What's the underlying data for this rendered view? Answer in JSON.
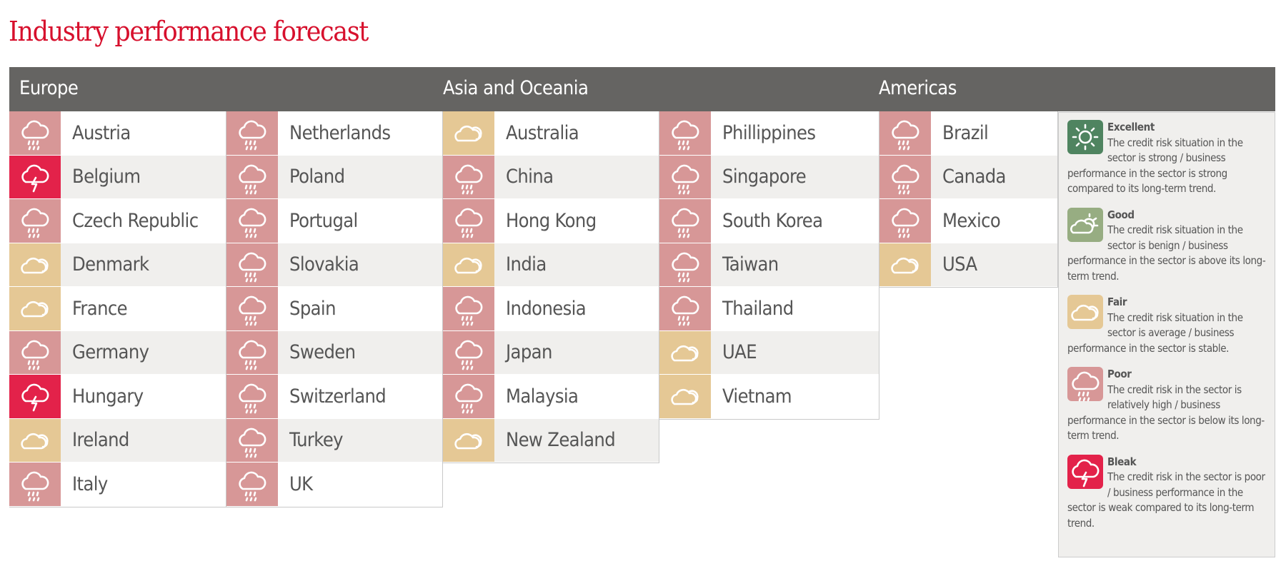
{
  "title": "Industry performance forecast",
  "colors": {
    "excellent": "#4f8460",
    "good": "#97ad82",
    "fair": "#e5c895",
    "poor": "#d79797",
    "bleak": "#e3224a",
    "header": "#656462",
    "title": "#d7102d"
  },
  "regions": [
    {
      "name": "Europe",
      "columns": [
        [
          [
            "Austria",
            "poor"
          ],
          [
            "Belgium",
            "bleak"
          ],
          [
            "Czech Republic",
            "poor"
          ],
          [
            "Denmark",
            "fair"
          ],
          [
            "France",
            "fair"
          ],
          [
            "Germany",
            "poor"
          ],
          [
            "Hungary",
            "bleak"
          ],
          [
            "Ireland",
            "fair"
          ],
          [
            "Italy",
            "poor"
          ]
        ],
        [
          [
            "Netherlands",
            "poor"
          ],
          [
            "Poland",
            "poor"
          ],
          [
            "Portugal",
            "poor"
          ],
          [
            "Slovakia",
            "poor"
          ],
          [
            "Spain",
            "poor"
          ],
          [
            "Sweden",
            "poor"
          ],
          [
            "Switzerland",
            "poor"
          ],
          [
            "Turkey",
            "poor"
          ],
          [
            "UK",
            "poor"
          ]
        ]
      ]
    },
    {
      "name": "Asia and Oceania",
      "columns": [
        [
          [
            "Australia",
            "fair"
          ],
          [
            "China",
            "poor"
          ],
          [
            "Hong Kong",
            "poor"
          ],
          [
            "India",
            "fair"
          ],
          [
            "Indonesia",
            "poor"
          ],
          [
            "Japan",
            "poor"
          ],
          [
            "Malaysia",
            "poor"
          ],
          [
            "New Zealand",
            "fair"
          ]
        ],
        [
          [
            "Phillippines",
            "poor"
          ],
          [
            "Singapore",
            "poor"
          ],
          [
            "South Korea",
            "poor"
          ],
          [
            "Taiwan",
            "poor"
          ],
          [
            "Thailand",
            "poor"
          ],
          [
            "UAE",
            "fair"
          ],
          [
            "Vietnam",
            "fair"
          ]
        ]
      ]
    },
    {
      "name": "Americas",
      "columns": [
        [
          [
            "Brazil",
            "poor"
          ],
          [
            "Canada",
            "poor"
          ],
          [
            "Mexico",
            "poor"
          ],
          [
            "USA",
            "fair"
          ]
        ]
      ]
    }
  ],
  "legend": [
    {
      "key": "excellent",
      "label": "Excellent",
      "text": "The credit risk situation in the sector is strong / business performance in the sector is strong compared to its long-term trend."
    },
    {
      "key": "good",
      "label": "Good",
      "text": "The credit risk situation in the sector is benign / business performance in the sector is above its long-term trend."
    },
    {
      "key": "fair",
      "label": "Fair",
      "text": "The credit risk situation in the sector is average / business performance in the sector is stable."
    },
    {
      "key": "poor",
      "label": "Poor",
      "text": "The credit risk in the sector is relatively high / business performance in the sector is below its long-term trend."
    },
    {
      "key": "bleak",
      "label": "Bleak",
      "text": "The credit risk in the sector is poor / business performance in the sector is weak compared to its long-term trend."
    }
  ]
}
